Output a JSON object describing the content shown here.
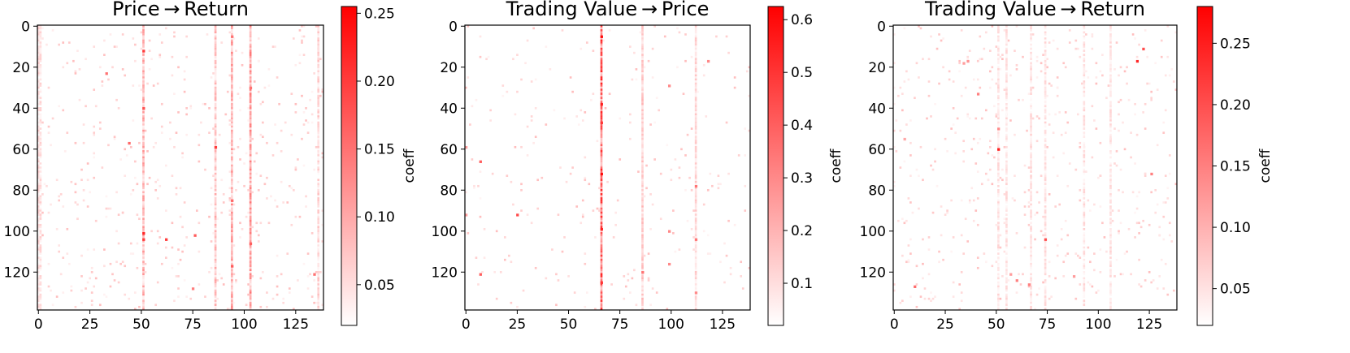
{
  "chart_data": [
    {
      "type": "heatmap",
      "title": "Price → Return",
      "x_ticks": [
        0,
        25,
        50,
        75,
        100,
        125
      ],
      "y_ticks": [
        0,
        20,
        40,
        60,
        80,
        100,
        120
      ],
      "xlim": [
        -0.5,
        138.5
      ],
      "ylim": [
        138.5,
        -0.5
      ],
      "colorbar": {
        "label": "coeff",
        "vmin": 0.02,
        "vmax": 0.255,
        "ticks": [
          "0.05",
          "0.10",
          "0.15",
          "0.20",
          "0.25"
        ],
        "tick_values": [
          0.05,
          0.1,
          0.15,
          0.2,
          0.25
        ]
      },
      "colormap": [
        "#ffffff",
        "#ff0000"
      ],
      "column_bands": [
        {
          "x": 0,
          "value": 0.05
        },
        {
          "x": 1,
          "value": 0.05
        },
        {
          "x": 51,
          "value": 0.09
        },
        {
          "x": 86,
          "value": 0.08
        },
        {
          "x": 94,
          "value": 0.1
        },
        {
          "x": 103,
          "value": 0.11
        },
        {
          "x": 136,
          "value": 0.06
        }
      ],
      "points": [
        {
          "x": 51,
          "y": 12,
          "value": 0.2
        },
        {
          "x": 51,
          "y": 40,
          "value": 0.18
        },
        {
          "x": 51,
          "y": 101,
          "value": 0.22
        },
        {
          "x": 51,
          "y": 104,
          "value": 0.2
        },
        {
          "x": 86,
          "y": 59,
          "value": 0.2
        },
        {
          "x": 62,
          "y": 104,
          "value": 0.2
        },
        {
          "x": 76,
          "y": 102,
          "value": 0.17
        },
        {
          "x": 94,
          "y": 5,
          "value": 0.15
        },
        {
          "x": 94,
          "y": 85,
          "value": 0.16
        },
        {
          "x": 94,
          "y": 117,
          "value": 0.17
        },
        {
          "x": 103,
          "y": 30,
          "value": 0.15
        },
        {
          "x": 103,
          "y": 106,
          "value": 0.17
        },
        {
          "x": 33,
          "y": 23,
          "value": 0.15
        },
        {
          "x": 44,
          "y": 57,
          "value": 0.16
        },
        {
          "x": 75,
          "y": 128,
          "value": 0.14
        },
        {
          "x": 134,
          "y": 121,
          "value": 0.15
        }
      ]
    },
    {
      "type": "heatmap",
      "title": "Trading Value → Price",
      "x_ticks": [
        0,
        25,
        50,
        75,
        100,
        125
      ],
      "y_ticks": [
        0,
        20,
        40,
        60,
        80,
        100,
        120
      ],
      "xlim": [
        -0.5,
        138.5
      ],
      "ylim": [
        138.5,
        -0.5
      ],
      "colorbar": {
        "label": "coeff",
        "vmin": 0.02,
        "vmax": 0.625,
        "ticks": [
          "0.1",
          "0.2",
          "0.3",
          "0.4",
          "0.5",
          "0.6"
        ],
        "tick_values": [
          0.1,
          0.2,
          0.3,
          0.4,
          0.5,
          0.6
        ]
      },
      "colormap": [
        "#ffffff",
        "#ff0000"
      ],
      "column_bands": [
        {
          "x": 66,
          "value": 0.4
        },
        {
          "x": 86,
          "value": 0.15
        },
        {
          "x": 112,
          "value": 0.12
        }
      ],
      "points": [
        {
          "x": 66,
          "y": 5,
          "value": 0.6
        },
        {
          "x": 66,
          "y": 38,
          "value": 0.55
        },
        {
          "x": 66,
          "y": 47,
          "value": 0.5
        },
        {
          "x": 66,
          "y": 72,
          "value": 0.6
        },
        {
          "x": 66,
          "y": 99,
          "value": 0.55
        },
        {
          "x": 66,
          "y": 125,
          "value": 0.5
        },
        {
          "x": 7,
          "y": 66,
          "value": 0.4
        },
        {
          "x": 7,
          "y": 121,
          "value": 0.4
        },
        {
          "x": 25,
          "y": 92,
          "value": 0.45
        },
        {
          "x": 86,
          "y": 120,
          "value": 0.35
        },
        {
          "x": 99,
          "y": 29,
          "value": 0.3
        },
        {
          "x": 99,
          "y": 100,
          "value": 0.3
        },
        {
          "x": 99,
          "y": 116,
          "value": 0.3
        },
        {
          "x": 112,
          "y": 78,
          "value": 0.35
        },
        {
          "x": 112,
          "y": 104,
          "value": 0.35
        },
        {
          "x": 118,
          "y": 17,
          "value": 0.3
        },
        {
          "x": 0,
          "y": 59,
          "value": 0.25
        },
        {
          "x": 0,
          "y": 92,
          "value": 0.25
        },
        {
          "x": 112,
          "y": 130,
          "value": 0.3
        }
      ]
    },
    {
      "type": "heatmap",
      "title": "Trading Value → Return",
      "x_ticks": [
        0,
        25,
        50,
        75,
        100,
        125
      ],
      "y_ticks": [
        0,
        20,
        40,
        60,
        80,
        100,
        120
      ],
      "xlim": [
        -0.5,
        138.5
      ],
      "ylim": [
        138.5,
        -0.5
      ],
      "colorbar": {
        "label": "coeff",
        "vmin": 0.02,
        "vmax": 0.28,
        "ticks": [
          "0.05",
          "0.10",
          "0.15",
          "0.20",
          "0.25"
        ],
        "tick_values": [
          0.05,
          0.1,
          0.15,
          0.2,
          0.25
        ]
      },
      "colormap": [
        "#ffffff",
        "#ff0000"
      ],
      "column_bands": [
        {
          "x": 51,
          "value": 0.05
        },
        {
          "x": 55,
          "value": 0.05
        },
        {
          "x": 67,
          "value": 0.05
        },
        {
          "x": 74,
          "value": 0.05
        },
        {
          "x": 93,
          "value": 0.05
        },
        {
          "x": 106,
          "value": 0.05
        }
      ],
      "points": [
        {
          "x": 51,
          "y": 60,
          "value": 0.25
        },
        {
          "x": 119,
          "y": 17,
          "value": 0.24
        },
        {
          "x": 122,
          "y": 11,
          "value": 0.2
        },
        {
          "x": 74,
          "y": 104,
          "value": 0.2
        },
        {
          "x": 10,
          "y": 127,
          "value": 0.17
        },
        {
          "x": 126,
          "y": 72,
          "value": 0.15
        },
        {
          "x": 41,
          "y": 33,
          "value": 0.15
        },
        {
          "x": 60,
          "y": 124,
          "value": 0.15
        },
        {
          "x": 66,
          "y": 126,
          "value": 0.15
        },
        {
          "x": 51,
          "y": 50,
          "value": 0.14
        },
        {
          "x": 36,
          "y": 17,
          "value": 0.13
        },
        {
          "x": 34,
          "y": 18,
          "value": 0.12
        },
        {
          "x": 88,
          "y": 122,
          "value": 0.12
        },
        {
          "x": 57,
          "y": 121,
          "value": 0.12
        },
        {
          "x": 5,
          "y": 55,
          "value": 0.11
        }
      ]
    }
  ]
}
